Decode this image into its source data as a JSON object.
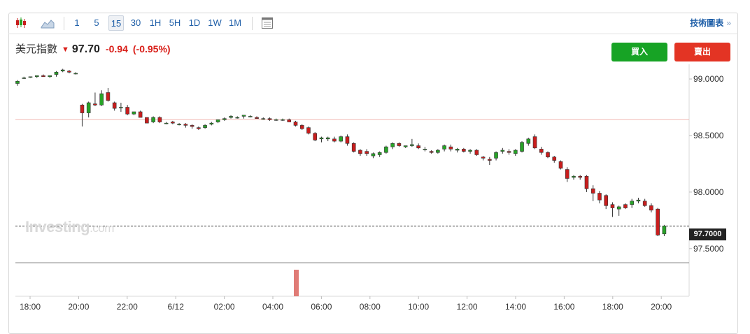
{
  "toolbar": {
    "intervals": [
      "1",
      "5",
      "15",
      "30",
      "1H",
      "5H",
      "1D",
      "1W",
      "1M"
    ],
    "active_interval": "15",
    "tech_link": "技術圖表",
    "tech_link_arrow": "»"
  },
  "header": {
    "name": "美元指數",
    "direction_icon": "down-arrow-icon",
    "price": "97.70",
    "change": "-0.94",
    "change_pct": "(-0.95%)",
    "down_color": "#d91e18"
  },
  "buttons": {
    "buy": "買入",
    "sell": "賣出"
  },
  "watermark": {
    "brand": "Investing",
    "suffix": ".com"
  },
  "last_price_label": "97.7000",
  "chart_data": {
    "type": "candlestick",
    "up_color": "#27a327",
    "down_color": "#c91d1d",
    "y_ticks": [
      "99.0000",
      "98.5000",
      "98.0000",
      "97.5000"
    ],
    "x_ticks": [
      "18:00",
      "20:00",
      "22:00",
      "6/12",
      "02:00",
      "04:00",
      "06:00",
      "08:00",
      "10:00",
      "12:00",
      "14:00",
      "16:00",
      "18:00",
      "20:00"
    ],
    "ylim": [
      97.4,
      99.13
    ],
    "reference_line": 98.64,
    "last_price": 97.7,
    "volume_bar_after_index": 54,
    "candles": [
      [
        98.96,
        98.99,
        98.94,
        98.98
      ],
      [
        99.01,
        99.02,
        99.0,
        99.01
      ],
      [
        99.02,
        99.02,
        99.01,
        99.02
      ],
      [
        99.02,
        99.03,
        99.01,
        99.03
      ],
      [
        99.03,
        99.04,
        99.02,
        99.02
      ],
      [
        99.02,
        99.03,
        99.01,
        99.03
      ],
      [
        99.04,
        99.07,
        99.02,
        99.06
      ],
      [
        99.07,
        99.09,
        99.06,
        99.08
      ],
      [
        99.07,
        99.08,
        99.05,
        99.06
      ],
      [
        99.05,
        99.06,
        99.04,
        99.05
      ],
      [
        98.77,
        98.78,
        98.58,
        98.7
      ],
      [
        98.7,
        98.8,
        98.66,
        98.79
      ],
      [
        98.78,
        98.88,
        98.76,
        98.77
      ],
      [
        98.77,
        98.9,
        98.76,
        98.87
      ],
      [
        98.88,
        98.92,
        98.8,
        98.81
      ],
      [
        98.79,
        98.8,
        98.72,
        98.74
      ],
      [
        98.75,
        98.79,
        98.71,
        98.75
      ],
      [
        98.75,
        98.77,
        98.68,
        98.69
      ],
      [
        98.69,
        98.71,
        98.68,
        98.71
      ],
      [
        98.71,
        98.72,
        98.66,
        98.66
      ],
      [
        98.66,
        98.66,
        98.61,
        98.61
      ],
      [
        98.62,
        98.67,
        98.61,
        98.66
      ],
      [
        98.66,
        98.67,
        98.61,
        98.62
      ],
      [
        98.61,
        98.62,
        98.6,
        98.61
      ],
      [
        98.62,
        98.63,
        98.6,
        98.61
      ],
      [
        98.6,
        98.61,
        98.59,
        98.6
      ],
      [
        98.6,
        98.61,
        98.57,
        98.59
      ],
      [
        98.59,
        98.6,
        98.56,
        98.58
      ],
      [
        98.57,
        98.58,
        98.55,
        98.56
      ],
      [
        98.57,
        98.6,
        98.56,
        98.59
      ],
      [
        98.6,
        98.62,
        98.59,
        98.61
      ],
      [
        98.62,
        98.64,
        98.61,
        98.64
      ],
      [
        98.64,
        98.66,
        98.63,
        98.65
      ],
      [
        98.66,
        98.68,
        98.65,
        98.67
      ],
      [
        98.66,
        98.67,
        98.65,
        98.66
      ],
      [
        98.67,
        98.68,
        98.65,
        98.68
      ],
      [
        98.67,
        98.68,
        98.66,
        98.67
      ],
      [
        98.66,
        98.67,
        98.65,
        98.65
      ],
      [
        98.65,
        98.66,
        98.64,
        98.65
      ],
      [
        98.65,
        98.66,
        98.63,
        98.64
      ],
      [
        98.64,
        98.65,
        98.63,
        98.64
      ],
      [
        98.64,
        98.65,
        98.63,
        98.64
      ],
      [
        98.64,
        98.65,
        98.62,
        98.62
      ],
      [
        98.62,
        98.63,
        98.58,
        98.59
      ],
      [
        98.59,
        98.6,
        98.55,
        98.56
      ],
      [
        98.57,
        98.58,
        98.51,
        98.52
      ],
      [
        98.52,
        98.53,
        98.45,
        98.46
      ],
      [
        98.47,
        98.49,
        98.44,
        98.48
      ],
      [
        98.47,
        98.49,
        98.45,
        98.48
      ],
      [
        98.47,
        98.49,
        98.44,
        98.45
      ],
      [
        98.45,
        98.5,
        98.44,
        98.49
      ],
      [
        98.49,
        98.51,
        98.41,
        98.43
      ],
      [
        98.43,
        98.44,
        98.35,
        98.36
      ],
      [
        98.37,
        98.38,
        98.32,
        98.34
      ],
      [
        98.36,
        98.38,
        98.32,
        98.34
      ],
      [
        98.32,
        98.35,
        98.3,
        98.34
      ],
      [
        98.33,
        98.36,
        98.31,
        98.35
      ],
      [
        98.35,
        98.41,
        98.34,
        98.4
      ],
      [
        98.4,
        98.44,
        98.38,
        98.43
      ],
      [
        98.43,
        98.44,
        98.4,
        98.41
      ],
      [
        98.4,
        98.41,
        98.39,
        98.41
      ],
      [
        98.41,
        98.47,
        98.4,
        98.42
      ],
      [
        98.41,
        98.43,
        98.38,
        98.39
      ],
      [
        98.38,
        98.4,
        98.36,
        98.38
      ],
      [
        98.36,
        98.37,
        98.34,
        98.35
      ],
      [
        98.35,
        98.38,
        98.34,
        98.37
      ],
      [
        98.38,
        98.42,
        98.36,
        98.41
      ],
      [
        98.4,
        98.42,
        98.36,
        98.38
      ],
      [
        98.37,
        98.39,
        98.35,
        98.38
      ],
      [
        98.38,
        98.39,
        98.35,
        98.36
      ],
      [
        98.36,
        98.38,
        98.34,
        98.37
      ],
      [
        98.37,
        98.38,
        98.32,
        98.33
      ],
      [
        98.31,
        98.32,
        98.28,
        98.3
      ],
      [
        98.29,
        98.31,
        98.24,
        98.28
      ],
      [
        98.3,
        98.36,
        98.28,
        98.35
      ],
      [
        98.36,
        98.39,
        98.34,
        98.37
      ],
      [
        98.36,
        98.38,
        98.33,
        98.35
      ],
      [
        98.34,
        98.38,
        98.32,
        98.37
      ],
      [
        98.36,
        98.45,
        98.35,
        98.44
      ],
      [
        98.43,
        98.48,
        98.41,
        98.47
      ],
      [
        98.49,
        98.51,
        98.38,
        98.39
      ],
      [
        98.38,
        98.4,
        98.33,
        98.35
      ],
      [
        98.35,
        98.36,
        98.3,
        98.31
      ],
      [
        98.31,
        98.32,
        98.26,
        98.28
      ],
      [
        98.27,
        98.28,
        98.2,
        98.21
      ],
      [
        98.2,
        98.22,
        98.09,
        98.12
      ],
      [
        98.13,
        98.15,
        98.11,
        98.14
      ],
      [
        98.14,
        98.15,
        98.11,
        98.13
      ],
      [
        98.14,
        98.15,
        98.0,
        98.03
      ],
      [
        98.03,
        98.06,
        97.92,
        97.99
      ],
      [
        97.99,
        98.01,
        97.9,
        97.93
      ],
      [
        97.97,
        97.98,
        97.85,
        97.88
      ],
      [
        97.89,
        97.91,
        97.78,
        97.86
      ],
      [
        97.85,
        97.88,
        97.79,
        97.87
      ],
      [
        97.89,
        97.9,
        97.85,
        97.86
      ],
      [
        97.89,
        97.94,
        97.86,
        97.92
      ],
      [
        97.92,
        97.95,
        97.9,
        97.93
      ],
      [
        97.92,
        97.94,
        97.87,
        97.88
      ],
      [
        97.88,
        97.9,
        97.82,
        97.84
      ],
      [
        97.85,
        97.86,
        97.61,
        97.62
      ],
      [
        97.63,
        97.71,
        97.61,
        97.7
      ]
    ]
  }
}
